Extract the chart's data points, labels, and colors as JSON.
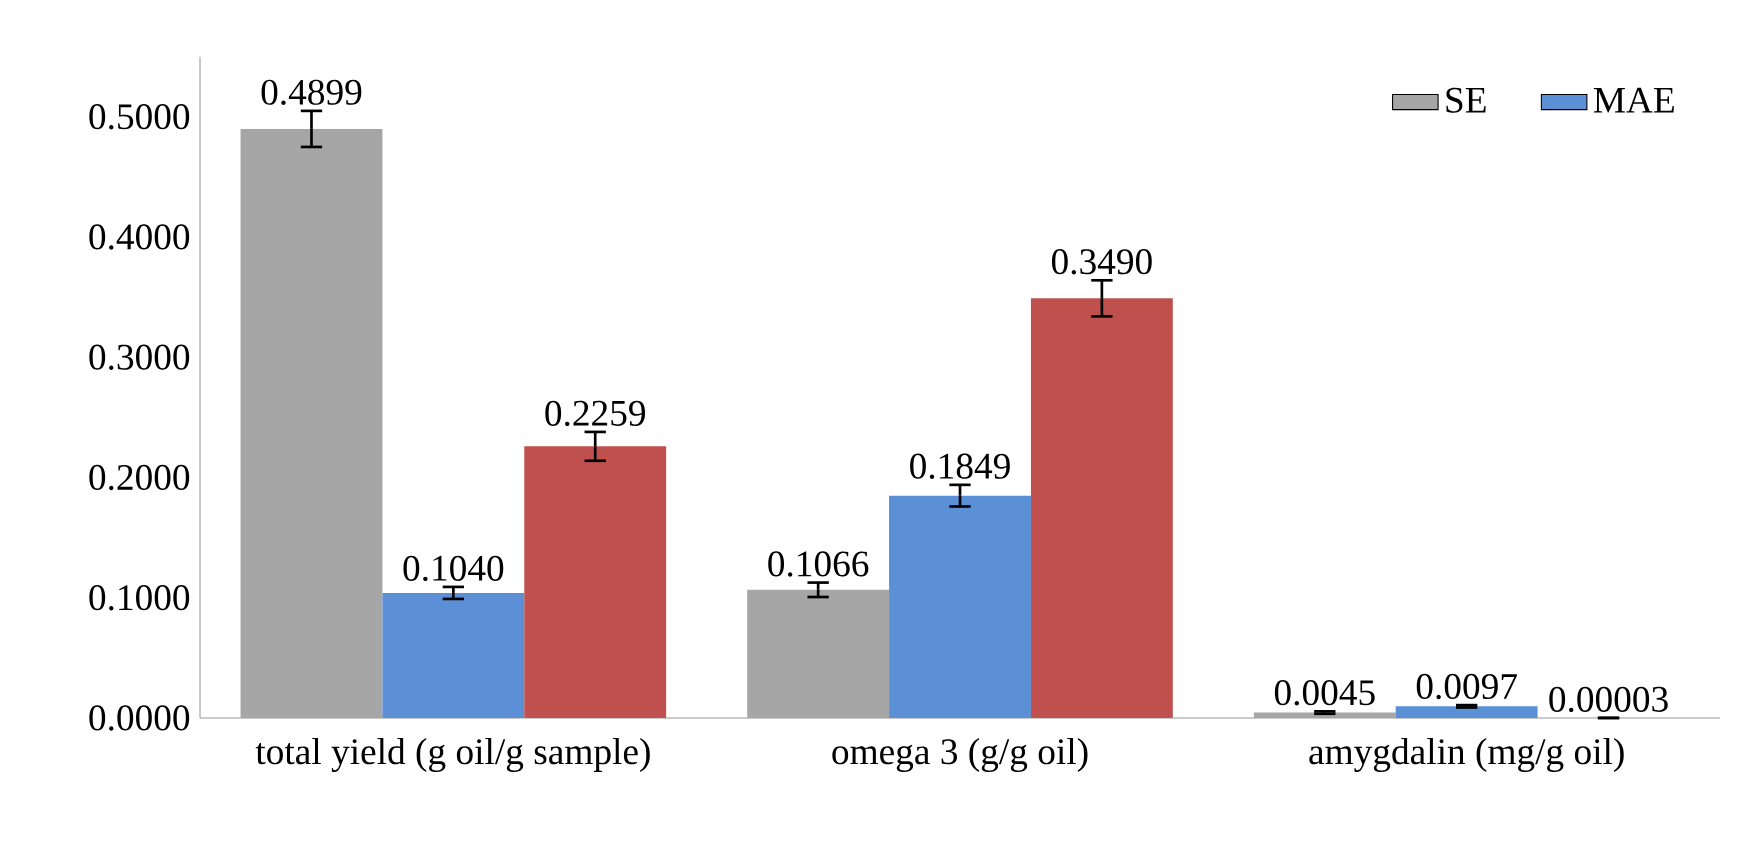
{
  "chart_data": {
    "type": "bar",
    "categories": [
      "total yield (g oil/g sample)",
      "omega 3 (g/g oil)",
      "amygdalin (mg/g oil)"
    ],
    "series": [
      {
        "name": "SE",
        "color": "#a6a6a6",
        "values": [
          0.4899,
          0.1066,
          0.0045
        ],
        "errors": [
          0.015,
          0.006,
          0.001
        ],
        "value_labels": [
          "0.4899",
          "0.1066",
          "0.0045"
        ]
      },
      {
        "name": "MAE",
        "color": "#5b8fd6",
        "values": [
          0.104,
          0.1849,
          0.0097
        ],
        "errors": [
          0.005,
          0.009,
          0.001
        ],
        "value_labels": [
          "0.1040",
          "0.1849",
          "0.0097"
        ]
      },
      {
        "color": "#c0504d",
        "values": [
          0.2259,
          0.349,
          3e-05
        ],
        "errors": [
          0.012,
          0.015,
          null
        ],
        "value_labels": [
          "0.2259",
          "0.3490",
          "0.00003"
        ]
      }
    ],
    "ylim": [
      0,
      0.55
    ],
    "yticks": [
      {
        "value": 0,
        "label": "0.0000"
      },
      {
        "value": 0.1,
        "label": "0.1000"
      },
      {
        "value": 0.2,
        "label": "0.2000"
      },
      {
        "value": 0.3,
        "label": "0.3000"
      },
      {
        "value": 0.4,
        "label": "0.4000"
      },
      {
        "value": 0.5,
        "label": "0.5000"
      }
    ],
    "legend": "top right"
  }
}
